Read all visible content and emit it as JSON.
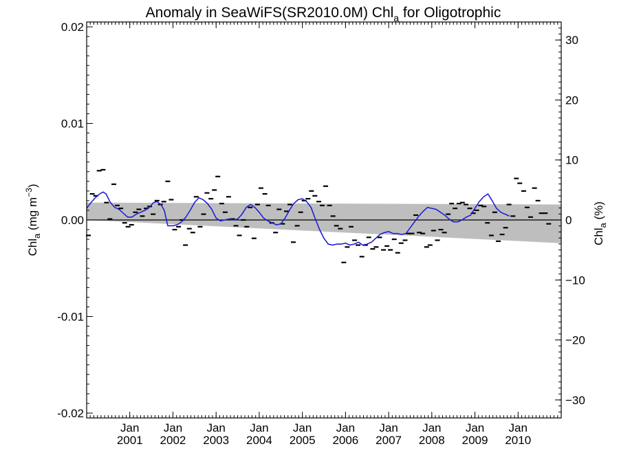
{
  "chart_data": {
    "type": "line",
    "title_main": "Anomaly in SeaWiFS(SR2010.0M) Chl",
    "title_sub": "a",
    "title_tail": " for Oligotrophic",
    "ylabel_left": {
      "main": "Chl",
      "sub": "a",
      "tail": " (mg m",
      "sup": "−3",
      "close": ")"
    },
    "ylabel_right": {
      "main": "Chl",
      "sub": "a",
      "tail": " (%)"
    },
    "x_range": [
      2000.0,
      2011.0
    ],
    "y_range": [
      -0.0205,
      0.0205
    ],
    "y2_range": [
      -33.0,
      33.0
    ],
    "y_ticks": [
      {
        "value": 0.02,
        "label": "0.02"
      },
      {
        "value": 0.01,
        "label": "0.01"
      },
      {
        "value": 0.0,
        "label": "0.00"
      },
      {
        "value": -0.01,
        "label": "-0.01"
      },
      {
        "value": -0.02,
        "label": "-0.02"
      }
    ],
    "y2_ticks": [
      {
        "value": 30,
        "label": "30"
      },
      {
        "value": 20,
        "label": "20"
      },
      {
        "value": 10,
        "label": "10"
      },
      {
        "value": 0,
        "label": "0"
      },
      {
        "value": -10,
        "label": "−10"
      },
      {
        "value": -20,
        "label": "−20"
      },
      {
        "value": -30,
        "label": "−30"
      }
    ],
    "x_ticks": [
      {
        "value": 2001.0,
        "month": "Jan",
        "year": "2001"
      },
      {
        "value": 2002.0,
        "month": "Jan",
        "year": "2002"
      },
      {
        "value": 2003.0,
        "month": "Jan",
        "year": "2003"
      },
      {
        "value": 2004.0,
        "month": "Jan",
        "year": "2004"
      },
      {
        "value": 2005.0,
        "month": "Jan",
        "year": "2005"
      },
      {
        "value": 2006.0,
        "month": "Jan",
        "year": "2006"
      },
      {
        "value": 2007.0,
        "month": "Jan",
        "year": "2007"
      },
      {
        "value": 2008.0,
        "month": "Jan",
        "year": "2008"
      },
      {
        "value": 2009.0,
        "month": "Jan",
        "year": "2009"
      },
      {
        "value": 2010.0,
        "month": "Jan",
        "year": "2010"
      }
    ],
    "band": {
      "x": [
        2000.0,
        2011.0
      ],
      "upper": [
        0.0018,
        0.0016
      ],
      "lower": [
        0.0,
        -0.0024
      ],
      "color": "#bebebe"
    },
    "zero_line": 0.0,
    "colors": {
      "smooth": "#1f1fd6",
      "points": "#000000"
    },
    "monthly_anomaly": [
      {
        "x": 2000.04,
        "y": -0.0016
      },
      {
        "x": 2000.13,
        "y": 0.0027
      },
      {
        "x": 2000.21,
        "y": 0.0025
      },
      {
        "x": 2000.29,
        "y": 0.0051
      },
      {
        "x": 2000.38,
        "y": 0.0052
      },
      {
        "x": 2000.46,
        "y": 0.0018
      },
      {
        "x": 2000.54,
        "y": 0.0001
      },
      {
        "x": 2000.63,
        "y": 0.0037
      },
      {
        "x": 2000.71,
        "y": 0.0015
      },
      {
        "x": 2000.79,
        "y": 0.0012
      },
      {
        "x": 2000.88,
        "y": -0.0003
      },
      {
        "x": 2000.96,
        "y": -0.0007
      },
      {
        "x": 2001.04,
        "y": -0.0005
      },
      {
        "x": 2001.13,
        "y": 0.0008
      },
      {
        "x": 2001.21,
        "y": 0.0011
      },
      {
        "x": 2001.29,
        "y": 0.0004
      },
      {
        "x": 2001.38,
        "y": 0.0012
      },
      {
        "x": 2001.46,
        "y": 0.0014
      },
      {
        "x": 2001.54,
        "y": 0.0006
      },
      {
        "x": 2001.63,
        "y": 0.002
      },
      {
        "x": 2001.71,
        "y": 0.0016
      },
      {
        "x": 2001.79,
        "y": 0.0019
      },
      {
        "x": 2001.88,
        "y": 0.004
      },
      {
        "x": 2001.96,
        "y": 0.0021
      },
      {
        "x": 2002.04,
        "y": -0.001
      },
      {
        "x": 2002.13,
        "y": -0.0007
      },
      {
        "x": 2002.21,
        "y": 0.0
      },
      {
        "x": 2002.29,
        "y": -0.0026
      },
      {
        "x": 2002.38,
        "y": -0.0009
      },
      {
        "x": 2002.46,
        "y": -0.0013
      },
      {
        "x": 2002.54,
        "y": 0.0024
      },
      {
        "x": 2002.63,
        "y": -0.0007
      },
      {
        "x": 2002.71,
        "y": 0.0006
      },
      {
        "x": 2002.79,
        "y": 0.0028
      },
      {
        "x": 2002.88,
        "y": 0.0022
      },
      {
        "x": 2002.96,
        "y": 0.0031
      },
      {
        "x": 2003.04,
        "y": 0.0045
      },
      {
        "x": 2003.13,
        "y": 0.0017
      },
      {
        "x": 2003.21,
        "y": 0.0008
      },
      {
        "x": 2003.29,
        "y": 0.0024
      },
      {
        "x": 2003.38,
        "y": 0.0001
      },
      {
        "x": 2003.46,
        "y": -0.0006
      },
      {
        "x": 2003.54,
        "y": -0.0016
      },
      {
        "x": 2003.63,
        "y": 0.0
      },
      {
        "x": 2003.71,
        "y": -0.0007
      },
      {
        "x": 2003.79,
        "y": 0.0013
      },
      {
        "x": 2003.88,
        "y": -0.0019
      },
      {
        "x": 2003.96,
        "y": 0.0016
      },
      {
        "x": 2004.04,
        "y": 0.0033
      },
      {
        "x": 2004.13,
        "y": 0.0027
      },
      {
        "x": 2004.21,
        "y": 0.0015
      },
      {
        "x": 2004.29,
        "y": -0.0003
      },
      {
        "x": 2004.38,
        "y": -0.0013
      },
      {
        "x": 2004.46,
        "y": 0.0011
      },
      {
        "x": 2004.54,
        "y": -0.0004
      },
      {
        "x": 2004.63,
        "y": 0.0009
      },
      {
        "x": 2004.71,
        "y": 0.0016
      },
      {
        "x": 2004.79,
        "y": -0.0023
      },
      {
        "x": 2004.88,
        "y": -0.0006
      },
      {
        "x": 2004.96,
        "y": 0.0008
      },
      {
        "x": 2005.04,
        "y": 0.002
      },
      {
        "x": 2005.13,
        "y": 0.0022
      },
      {
        "x": 2005.21,
        "y": 0.003
      },
      {
        "x": 2005.29,
        "y": 0.0025
      },
      {
        "x": 2005.38,
        "y": 0.0019
      },
      {
        "x": 2005.46,
        "y": 0.0015
      },
      {
        "x": 2005.54,
        "y": 0.0035
      },
      {
        "x": 2005.63,
        "y": 0.0015
      },
      {
        "x": 2005.71,
        "y": 0.0004
      },
      {
        "x": 2005.79,
        "y": -0.0006
      },
      {
        "x": 2005.88,
        "y": -0.0009
      },
      {
        "x": 2005.96,
        "y": -0.0044
      },
      {
        "x": 2006.04,
        "y": -0.0028
      },
      {
        "x": 2006.13,
        "y": -0.0007
      },
      {
        "x": 2006.21,
        "y": -0.0021
      },
      {
        "x": 2006.29,
        "y": -0.0026
      },
      {
        "x": 2006.38,
        "y": -0.0038
      },
      {
        "x": 2006.46,
        "y": -0.0026
      },
      {
        "x": 2006.54,
        "y": -0.0018
      },
      {
        "x": 2006.63,
        "y": -0.003
      },
      {
        "x": 2006.71,
        "y": -0.0028
      },
      {
        "x": 2006.79,
        "y": -0.0018
      },
      {
        "x": 2006.88,
        "y": -0.0031
      },
      {
        "x": 2006.96,
        "y": -0.0027
      },
      {
        "x": 2007.04,
        "y": -0.0031
      },
      {
        "x": 2007.13,
        "y": -0.002
      },
      {
        "x": 2007.21,
        "y": -0.0034
      },
      {
        "x": 2007.29,
        "y": -0.0024
      },
      {
        "x": 2007.38,
        "y": -0.0021
      },
      {
        "x": 2007.46,
        "y": -0.0014
      },
      {
        "x": 2007.54,
        "y": -0.0014
      },
      {
        "x": 2007.63,
        "y": 0.0005
      },
      {
        "x": 2007.71,
        "y": -0.0013
      },
      {
        "x": 2007.79,
        "y": -0.0014
      },
      {
        "x": 2007.88,
        "y": -0.0028
      },
      {
        "x": 2007.96,
        "y": -0.0026
      },
      {
        "x": 2008.04,
        "y": -0.0011
      },
      {
        "x": 2008.13,
        "y": -0.0021
      },
      {
        "x": 2008.21,
        "y": -0.001
      },
      {
        "x": 2008.29,
        "y": -0.0013
      },
      {
        "x": 2008.38,
        "y": 0.0006
      },
      {
        "x": 2008.46,
        "y": 0.0017
      },
      {
        "x": 2008.54,
        "y": 0.0012
      },
      {
        "x": 2008.63,
        "y": 0.0017
      },
      {
        "x": 2008.71,
        "y": 0.0018
      },
      {
        "x": 2008.79,
        "y": 0.0016
      },
      {
        "x": 2008.88,
        "y": 0.0012
      },
      {
        "x": 2008.96,
        "y": 0.0007
      },
      {
        "x": 2009.04,
        "y": 0.001
      },
      {
        "x": 2009.13,
        "y": 0.0015
      },
      {
        "x": 2009.21,
        "y": 0.0014
      },
      {
        "x": 2009.29,
        "y": -0.0003
      },
      {
        "x": 2009.38,
        "y": -0.0016
      },
      {
        "x": 2009.46,
        "y": 0.0008
      },
      {
        "x": 2009.54,
        "y": -0.0022
      },
      {
        "x": 2009.63,
        "y": -0.0015
      },
      {
        "x": 2009.71,
        "y": -0.0008
      },
      {
        "x": 2009.79,
        "y": 0.0016
      },
      {
        "x": 2009.88,
        "y": 0.0004
      },
      {
        "x": 2009.96,
        "y": 0.0043
      },
      {
        "x": 2010.04,
        "y": 0.0038
      },
      {
        "x": 2010.13,
        "y": 0.003
      },
      {
        "x": 2010.21,
        "y": 0.0013
      },
      {
        "x": 2010.29,
        "y": 0.0003
      },
      {
        "x": 2010.38,
        "y": 0.0033
      },
      {
        "x": 2010.46,
        "y": 0.002
      },
      {
        "x": 2010.54,
        "y": 0.0007
      },
      {
        "x": 2010.63,
        "y": 0.0007
      },
      {
        "x": 2010.71,
        "y": -0.0004
      }
    ],
    "smoothed": [
      {
        "x": 2000.0,
        "y": 0.0012
      },
      {
        "x": 2000.1,
        "y": 0.0018
      },
      {
        "x": 2000.2,
        "y": 0.0023
      },
      {
        "x": 2000.3,
        "y": 0.0027
      },
      {
        "x": 2000.38,
        "y": 0.0029
      },
      {
        "x": 2000.45,
        "y": 0.0027
      },
      {
        "x": 2000.55,
        "y": 0.0018
      },
      {
        "x": 2000.65,
        "y": 0.0013
      },
      {
        "x": 2000.75,
        "y": 0.0011
      },
      {
        "x": 2000.85,
        "y": 0.0007
      },
      {
        "x": 2000.95,
        "y": 0.0003
      },
      {
        "x": 2001.05,
        "y": 0.0003
      },
      {
        "x": 2001.15,
        "y": 0.0006
      },
      {
        "x": 2001.25,
        "y": 0.0008
      },
      {
        "x": 2001.35,
        "y": 0.001
      },
      {
        "x": 2001.45,
        "y": 0.0013
      },
      {
        "x": 2001.55,
        "y": 0.0018
      },
      {
        "x": 2001.63,
        "y": 0.0019
      },
      {
        "x": 2001.72,
        "y": 0.0016
      },
      {
        "x": 2001.8,
        "y": 0.001
      },
      {
        "x": 2001.88,
        "y": -0.0006
      },
      {
        "x": 2002.0,
        "y": -0.0006
      },
      {
        "x": 2002.1,
        "y": -0.0005
      },
      {
        "x": 2002.2,
        "y": -0.0002
      },
      {
        "x": 2002.3,
        "y": 0.0003
      },
      {
        "x": 2002.4,
        "y": 0.001
      },
      {
        "x": 2002.5,
        "y": 0.0018
      },
      {
        "x": 2002.6,
        "y": 0.0023
      },
      {
        "x": 2002.7,
        "y": 0.0021
      },
      {
        "x": 2002.8,
        "y": 0.0017
      },
      {
        "x": 2002.9,
        "y": 0.0011
      },
      {
        "x": 2003.0,
        "y": 0.0002
      },
      {
        "x": 2003.1,
        "y": -0.0001
      },
      {
        "x": 2003.2,
        "y": 0.0
      },
      {
        "x": 2003.3,
        "y": 0.0001
      },
      {
        "x": 2003.4,
        "y": 0.0
      },
      {
        "x": 2003.5,
        "y": 0.0001
      },
      {
        "x": 2003.6,
        "y": 0.0006
      },
      {
        "x": 2003.7,
        "y": 0.0013
      },
      {
        "x": 2003.8,
        "y": 0.0016
      },
      {
        "x": 2003.9,
        "y": 0.0013
      },
      {
        "x": 2004.0,
        "y": 0.0008
      },
      {
        "x": 2004.1,
        "y": 0.0002
      },
      {
        "x": 2004.2,
        "y": -0.0001
      },
      {
        "x": 2004.3,
        "y": -0.0003
      },
      {
        "x": 2004.4,
        "y": -0.0005
      },
      {
        "x": 2004.5,
        "y": -0.0004
      },
      {
        "x": 2004.6,
        "y": 0.0002
      },
      {
        "x": 2004.7,
        "y": 0.001
      },
      {
        "x": 2004.8,
        "y": 0.0017
      },
      {
        "x": 2004.9,
        "y": 0.0021
      },
      {
        "x": 2005.0,
        "y": 0.0022
      },
      {
        "x": 2005.1,
        "y": 0.0019
      },
      {
        "x": 2005.2,
        "y": 0.0013
      },
      {
        "x": 2005.3,
        "y": 0.0001
      },
      {
        "x": 2005.4,
        "y": -0.001
      },
      {
        "x": 2005.5,
        "y": -0.0019
      },
      {
        "x": 2005.6,
        "y": -0.0025
      },
      {
        "x": 2005.7,
        "y": -0.0026
      },
      {
        "x": 2005.8,
        "y": -0.0025
      },
      {
        "x": 2005.9,
        "y": -0.0025
      },
      {
        "x": 2006.0,
        "y": -0.0024
      },
      {
        "x": 2006.1,
        "y": -0.0026
      },
      {
        "x": 2006.2,
        "y": -0.0025
      },
      {
        "x": 2006.3,
        "y": -0.0023
      },
      {
        "x": 2006.4,
        "y": -0.0026
      },
      {
        "x": 2006.5,
        "y": -0.0025
      },
      {
        "x": 2006.6,
        "y": -0.0023
      },
      {
        "x": 2006.7,
        "y": -0.0019
      },
      {
        "x": 2006.8,
        "y": -0.0015
      },
      {
        "x": 2006.9,
        "y": -0.0013
      },
      {
        "x": 2007.0,
        "y": -0.0012
      },
      {
        "x": 2007.1,
        "y": -0.0014
      },
      {
        "x": 2007.2,
        "y": -0.0014
      },
      {
        "x": 2007.3,
        "y": -0.0015
      },
      {
        "x": 2007.4,
        "y": -0.0014
      },
      {
        "x": 2007.5,
        "y": -0.0008
      },
      {
        "x": 2007.6,
        "y": -0.0002
      },
      {
        "x": 2007.7,
        "y": 0.0004
      },
      {
        "x": 2007.8,
        "y": 0.0009
      },
      {
        "x": 2007.9,
        "y": 0.0013
      },
      {
        "x": 2008.0,
        "y": 0.0012
      },
      {
        "x": 2008.1,
        "y": 0.0011
      },
      {
        "x": 2008.2,
        "y": 0.0008
      },
      {
        "x": 2008.3,
        "y": 0.0005
      },
      {
        "x": 2008.4,
        "y": 0.0001
      },
      {
        "x": 2008.5,
        "y": -0.0002
      },
      {
        "x": 2008.6,
        "y": -0.0002
      },
      {
        "x": 2008.7,
        "y": 0.0
      },
      {
        "x": 2008.8,
        "y": 0.0003
      },
      {
        "x": 2008.9,
        "y": 0.0005
      },
      {
        "x": 2009.0,
        "y": 0.0012
      },
      {
        "x": 2009.1,
        "y": 0.0019
      },
      {
        "x": 2009.2,
        "y": 0.0024
      },
      {
        "x": 2009.3,
        "y": 0.0027
      },
      {
        "x": 2009.4,
        "y": 0.002
      },
      {
        "x": 2009.5,
        "y": 0.0012
      },
      {
        "x": 2009.6,
        "y": 0.0008
      },
      {
        "x": 2009.7,
        "y": 0.0006
      },
      {
        "x": 2009.8,
        "y": 0.0004
      }
    ]
  }
}
